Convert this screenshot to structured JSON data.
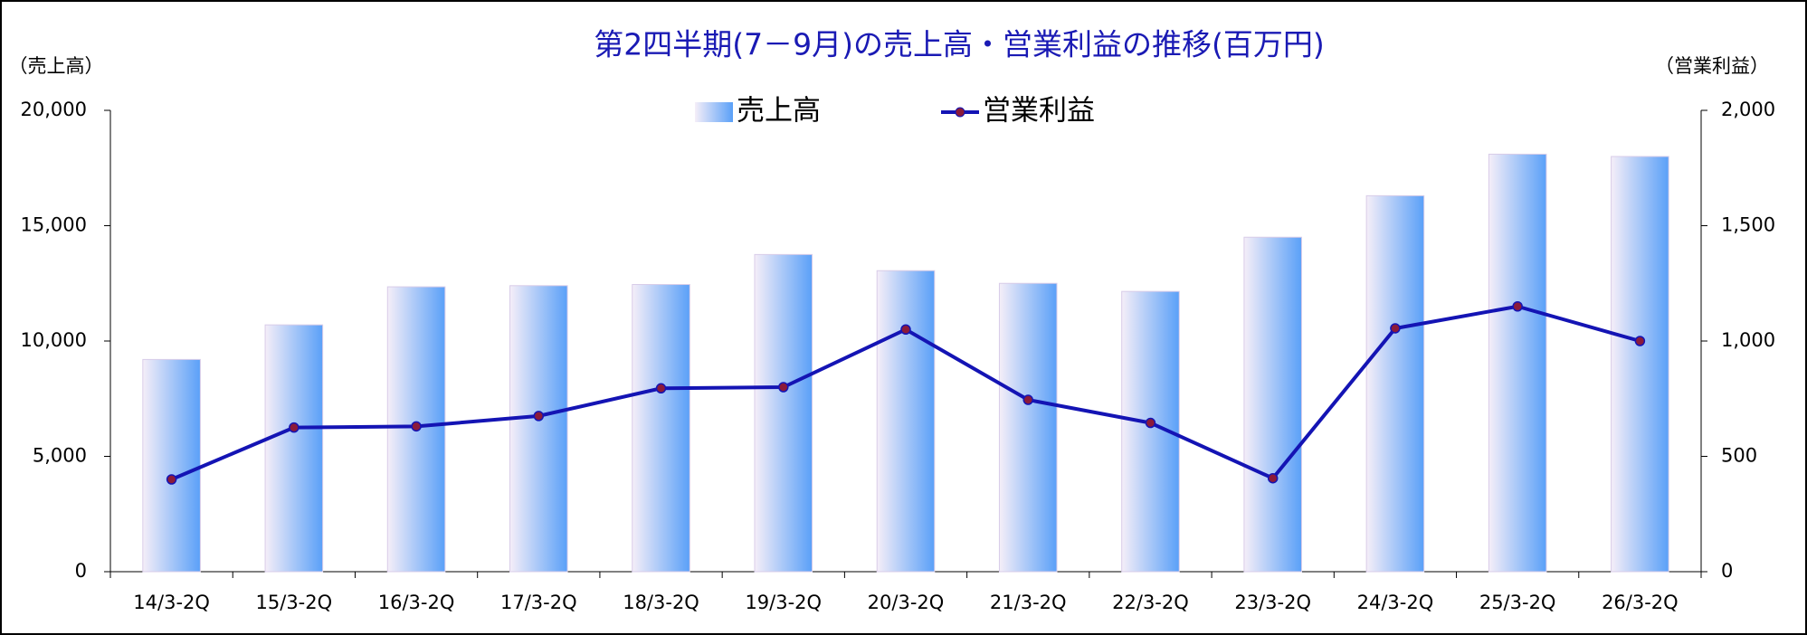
{
  "chart_data": {
    "type": "bar",
    "title": "第2四半期(7－9月)の売上高・営業利益の推移(百万円)",
    "y_label": "（売上高）",
    "y2_label": "（営業利益）",
    "categories": [
      "14/3-2Q",
      "15/3-2Q",
      "16/3-2Q",
      "17/3-2Q",
      "18/3-2Q",
      "19/3-2Q",
      "20/3-2Q",
      "21/3-2Q",
      "22/3-2Q",
      "23/3-2Q",
      "24/3-2Q",
      "25/3-2Q",
      "26/3-2Q"
    ],
    "series": [
      {
        "name": "売上高",
        "type": "bar",
        "color": "#5aa0f8",
        "values": [
          9200,
          10700,
          12350,
          12400,
          12450,
          13750,
          13050,
          12500,
          12150,
          14500,
          16300,
          18100,
          18000
        ]
      },
      {
        "name": "営業利益",
        "type": "line",
        "axis": "y2",
        "color": "#1414b4",
        "values": [
          400,
          625,
          630,
          675,
          795,
          800,
          1050,
          745,
          645,
          405,
          1055,
          1150,
          1000
        ]
      }
    ],
    "ylim": [
      0,
      20000
    ],
    "yticks": [
      0,
      {
        "value": 5000,
        "label": "5,000"
      },
      {
        "value": 10000,
        "label": "10,000"
      },
      {
        "value": 15000,
        "label": "15,000"
      },
      {
        "value": 20000,
        "label": "20,000"
      }
    ],
    "y2lim": [
      0,
      2000
    ],
    "y2ticks": [
      0,
      500,
      {
        "value": 1000,
        "label": "1,000"
      },
      {
        "value": 1500,
        "label": "1,500"
      },
      {
        "value": 2000,
        "label": "2,000"
      }
    ],
    "grid": false
  }
}
